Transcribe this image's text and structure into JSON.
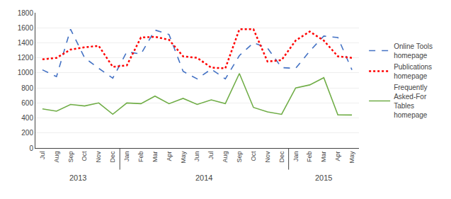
{
  "chart_data": {
    "type": "line",
    "categories": [
      "Jul",
      "Aug",
      "Sep",
      "Oct",
      "Nov",
      "Dec",
      "Jan",
      "Feb",
      "Mar",
      "Apr",
      "May",
      "Jun",
      "Jul",
      "Aug",
      "Sep",
      "Oct",
      "Nov",
      "Dec",
      "Jan",
      "Feb",
      "Mar",
      "Apr",
      "May"
    ],
    "series": [
      {
        "name": "Online Tools\nhomepage",
        "color": "#4472C4",
        "line_style": "dashed",
        "values": [
          1040,
          950,
          1580,
          1200,
          1060,
          930,
          1280,
          1250,
          1570,
          1510,
          1020,
          920,
          1050,
          920,
          1230,
          1400,
          1330,
          1070,
          1060,
          1290,
          1490,
          1470,
          1040
        ]
      },
      {
        "name": "Publications\nhomepage",
        "color": "#FF0000",
        "line_style": "dotted",
        "values": [
          1180,
          1200,
          1310,
          1340,
          1360,
          1080,
          1100,
          1470,
          1480,
          1440,
          1220,
          1200,
          1070,
          1060,
          1580,
          1580,
          1150,
          1170,
          1430,
          1550,
          1430,
          1220,
          1200
        ]
      },
      {
        "name": "Frequently\nAsked-For\nTables\nhomepage",
        "color": "#70AD47",
        "line_style": "solid",
        "values": [
          520,
          490,
          580,
          560,
          600,
          450,
          600,
          590,
          690,
          590,
          660,
          580,
          640,
          590,
          992,
          540,
          480,
          448,
          800,
          840,
          936,
          440,
          439
        ]
      }
    ],
    "annotations": [
      {
        "text": "2013",
        "span": 6
      },
      {
        "text": "2014",
        "span": 12
      },
      {
        "text": "2015",
        "span": 5
      }
    ],
    "ylim": [
      0,
      1800
    ],
    "yticks": [
      0,
      200,
      400,
      600,
      800,
      1000,
      1200,
      1400,
      1600,
      1800
    ],
    "grid": true,
    "legend": "right"
  }
}
